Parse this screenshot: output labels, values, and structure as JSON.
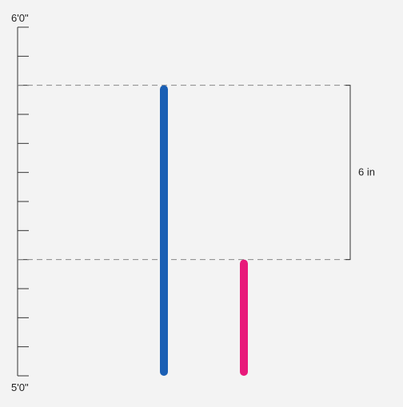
{
  "ruler": {
    "top_label": "6'0\"",
    "bottom_label": "5'0\"",
    "min_inches": 60,
    "max_inches": 72,
    "tick_step_inches": 1
  },
  "bars": [
    {
      "name": "blue-height-bar",
      "color": "#1a5fb4",
      "top_inches": 70,
      "bottom_inches": 60
    },
    {
      "name": "pink-height-bar",
      "color": "#e8197a",
      "top_inches": 64,
      "bottom_inches": 60
    }
  ],
  "difference": {
    "label": "6 in",
    "upper_inches": 70,
    "lower_inches": 64
  },
  "colors": {
    "background": "#f3f3f3",
    "axis": "#333333",
    "guide": "#888888"
  }
}
